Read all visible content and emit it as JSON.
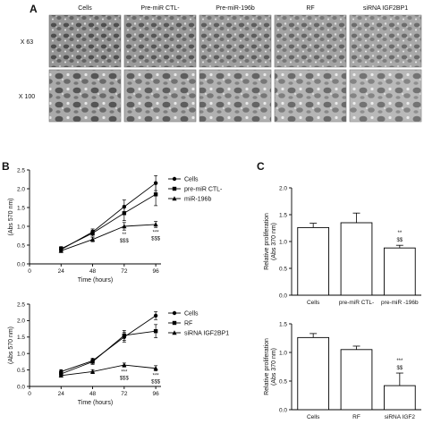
{
  "panel_a": {
    "letter": "A",
    "columns": [
      "Cells",
      "Pre-miR CTL-",
      "Pre-miR-196b",
      "RF",
      "siRNA IGF2BP1"
    ],
    "rows": [
      "X 63",
      "X 100"
    ]
  },
  "panel_b_letter": "B",
  "panel_c_letter": "C",
  "chart_data": [
    {
      "id": "b-top",
      "type": "line",
      "xlabel": "Time (hours)",
      "ylabel": "(Abs 570 nm)",
      "x": [
        24,
        48,
        72,
        96
      ],
      "xlim": [
        0,
        100
      ],
      "ylim": [
        0,
        2.5
      ],
      "xticks": [
        "0",
        "24",
        "48",
        "72",
        "96"
      ],
      "yticks": [
        "0.0",
        "0.5",
        "1.0",
        "1.5",
        "2.0",
        "2.5"
      ],
      "legend_position": "right",
      "series": [
        {
          "name": "Cells",
          "marker": "circle",
          "values": [
            0.38,
            0.85,
            1.52,
            2.15
          ],
          "errors": [
            0.06,
            0.08,
            0.18,
            0.2
          ]
        },
        {
          "name": "pre-miR CTL-",
          "marker": "square",
          "values": [
            0.4,
            0.82,
            1.35,
            1.85
          ],
          "errors": [
            0.06,
            0.08,
            0.2,
            0.3
          ]
        },
        {
          "name": "miR-196b",
          "marker": "triangle",
          "values": [
            0.35,
            0.65,
            1.0,
            1.05
          ],
          "errors": [
            0.05,
            0.06,
            0.1,
            0.08
          ]
        }
      ],
      "annotations": [
        {
          "x": 72,
          "lines": [
            "**",
            "$$$"
          ]
        },
        {
          "x": 96,
          "lines": [
            "***",
            "$$$"
          ]
        }
      ]
    },
    {
      "id": "b-bottom",
      "type": "line",
      "xlabel": "Time (hours)",
      "ylabel": "(Abs 570 nm)",
      "x": [
        24,
        48,
        72,
        96
      ],
      "xlim": [
        0,
        100
      ],
      "ylim": [
        0,
        2.5
      ],
      "xticks": [
        "0",
        "24",
        "48",
        "72",
        "96"
      ],
      "yticks": [
        "0.0",
        "0.5",
        "1.0",
        "1.5",
        "2.0",
        "2.5"
      ],
      "legend_position": "right",
      "series": [
        {
          "name": "Cells",
          "marker": "circle",
          "values": [
            0.45,
            0.78,
            1.5,
            2.15
          ],
          "errors": [
            0.06,
            0.08,
            0.15,
            0.12
          ]
        },
        {
          "name": "RF",
          "marker": "square",
          "values": [
            0.38,
            0.75,
            1.55,
            1.68
          ],
          "errors": [
            0.06,
            0.08,
            0.15,
            0.2
          ]
        },
        {
          "name": "siRNA IGF2BP1",
          "marker": "triangle",
          "values": [
            0.33,
            0.45,
            0.65,
            0.55
          ],
          "errors": [
            0.05,
            0.06,
            0.06,
            0.08
          ]
        }
      ],
      "annotations": [
        {
          "x": 72,
          "lines": [
            "***",
            "$$$"
          ]
        },
        {
          "x": 96,
          "lines": [
            "***",
            "$$$"
          ]
        }
      ]
    },
    {
      "id": "c-top",
      "type": "bar",
      "ylabel": "Relative proliferation (Abs 370 nm)",
      "categories": [
        "Cells",
        "pre-miR CTL-",
        "pre-miR -196b"
      ],
      "values": [
        1.26,
        1.35,
        0.88
      ],
      "errors": [
        0.08,
        0.18,
        0.05
      ],
      "ylim": [
        0,
        2.0
      ],
      "yticks": [
        "0.0",
        "0.5",
        "1.0",
        "1.5",
        "2.0"
      ],
      "annotations": [
        {
          "category_index": 2,
          "lines": [
            "**",
            "$$"
          ]
        }
      ]
    },
    {
      "id": "c-bottom",
      "type": "bar",
      "ylabel": "Relative proliferation (Abs 370 nm)",
      "categories": [
        "Cells",
        "RF",
        "siRNA IGF2"
      ],
      "values": [
        1.26,
        1.05,
        0.42
      ],
      "errors": [
        0.07,
        0.06,
        0.22
      ],
      "ylim": [
        0,
        1.5
      ],
      "yticks": [
        "0.0",
        "0.5",
        "1.0",
        "1.5"
      ],
      "annotations": [
        {
          "category_index": 2,
          "lines": [
            "***",
            "$$"
          ]
        }
      ]
    }
  ]
}
